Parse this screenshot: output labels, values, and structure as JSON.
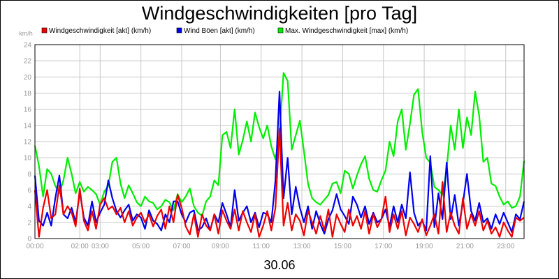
{
  "chart_data": {
    "type": "line",
    "title": "Windgeschwindigkeiten [pro Tag]",
    "ylabel": "km/h",
    "xlabel": "30.06",
    "ylim": [
      0,
      24
    ],
    "yticks": [
      0,
      2,
      4,
      6,
      8,
      10,
      12,
      14,
      16,
      18,
      20,
      22,
      24
    ],
    "xlim": [
      0,
      24
    ],
    "xticks": [
      {
        "x": 0,
        "label": "00:00"
      },
      {
        "x": 2.2,
        "label": "02:00"
      },
      {
        "x": 3.2,
        "label": "03:00"
      },
      {
        "x": 5.2,
        "label": "05:00"
      },
      {
        "x": 7.2,
        "label": "07:00"
      },
      {
        "x": 9.1,
        "label": "09:00"
      },
      {
        "x": 11.1,
        "label": "11:00"
      },
      {
        "x": 13.1,
        "label": "13:00"
      },
      {
        "x": 15.1,
        "label": "15:00"
      },
      {
        "x": 17.1,
        "label": "17:00"
      },
      {
        "x": 19.1,
        "label": "19:00"
      },
      {
        "x": 21.1,
        "label": "21:00"
      },
      {
        "x": 23.1,
        "label": "23:00"
      }
    ],
    "grid": true,
    "legend_position": "top",
    "series": [
      {
        "name": "Max. Windgeschwindigkeit [max] (km/h)",
        "color": "#00ee00",
        "x": [
          0,
          0.2,
          0.4,
          0.6,
          0.8,
          1.0,
          1.2,
          1.4,
          1.6,
          1.8,
          2.0,
          2.2,
          2.4,
          2.6,
          2.8,
          3.0,
          3.2,
          3.4,
          3.6,
          3.8,
          4.0,
          4.2,
          4.4,
          4.6,
          4.8,
          5.0,
          5.2,
          5.4,
          5.6,
          5.8,
          6.0,
          6.2,
          6.4,
          6.6,
          6.8,
          7.0,
          7.2,
          7.4,
          7.6,
          7.8,
          8.0,
          8.2,
          8.4,
          8.6,
          8.8,
          9.0,
          9.2,
          9.4,
          9.6,
          9.8,
          10.0,
          10.2,
          10.4,
          10.6,
          10.8,
          11.0,
          11.2,
          11.4,
          11.6,
          11.8,
          12.0,
          12.2,
          12.4,
          12.6,
          12.8,
          13.0,
          13.2,
          13.4,
          13.6,
          13.8,
          14.0,
          14.2,
          14.4,
          14.6,
          14.8,
          15.0,
          15.2,
          15.4,
          15.6,
          15.8,
          16.0,
          16.2,
          16.4,
          16.6,
          16.8,
          17.0,
          17.2,
          17.4,
          17.6,
          17.8,
          18.0,
          18.2,
          18.4,
          18.6,
          18.8,
          19.0,
          19.2,
          19.4,
          19.6,
          19.8,
          20.0,
          20.2,
          20.4,
          20.6,
          20.8,
          21.0,
          21.2,
          21.4,
          21.6,
          21.8,
          22.0,
          22.2,
          22.4,
          22.6,
          22.8,
          23.0,
          23.2,
          23.4,
          23.6,
          23.8,
          24.0
        ],
        "values": [
          11.5,
          9.0,
          5.2,
          8.6,
          8.0,
          6.5,
          5.6,
          7.2,
          10.0,
          8.0,
          5.6,
          7.0,
          5.8,
          6.4,
          6.0,
          5.5,
          4.2,
          5.8,
          6.5,
          9.5,
          10.0,
          6.8,
          5.0,
          6.6,
          5.6,
          4.5,
          4.0,
          5.2,
          4.6,
          4.4,
          3.6,
          4.0,
          4.8,
          4.5,
          3.5,
          5.5,
          4.5,
          5.2,
          6.2,
          4.0,
          3.2,
          2.8,
          4.6,
          5.2,
          7.2,
          6.6,
          12.8,
          13.2,
          11.2,
          16.0,
          10.4,
          12.2,
          14.5,
          12.0,
          15.6,
          13.8,
          12.4,
          14.0,
          11.4,
          9.8,
          13.0,
          20.5,
          19.5,
          11.0,
          12.8,
          14.6,
          10.8,
          6.8,
          5.0,
          4.5,
          4.2,
          4.8,
          5.4,
          6.8,
          7.0,
          5.6,
          8.4,
          8.0,
          6.2,
          7.8,
          9.2,
          10.2,
          7.4,
          6.0,
          5.8,
          7.2,
          8.4,
          12.0,
          10.2,
          14.5,
          16.0,
          11.0,
          14.2,
          17.8,
          18.5,
          13.2,
          10.0,
          9.4,
          6.4,
          6.0,
          5.4,
          8.6,
          14.0,
          11.0,
          16.0,
          11.2,
          15.0,
          12.8,
          18.2,
          15.2,
          9.5,
          10.0,
          6.8,
          6.5,
          5.2,
          4.2,
          4.6,
          3.8,
          4.0,
          5.2,
          9.6
        ]
      },
      {
        "name": "Wind Böen [akt] (km/h)",
        "color": "#0000ee",
        "x": [
          0,
          0.2,
          0.4,
          0.6,
          0.8,
          1.0,
          1.2,
          1.4,
          1.6,
          1.8,
          2.0,
          2.2,
          2.4,
          2.6,
          2.8,
          3.0,
          3.2,
          3.4,
          3.6,
          3.8,
          4.0,
          4.2,
          4.4,
          4.6,
          4.8,
          5.0,
          5.2,
          5.4,
          5.6,
          5.8,
          6.0,
          6.2,
          6.4,
          6.6,
          6.8,
          7.0,
          7.2,
          7.4,
          7.6,
          7.8,
          8.0,
          8.2,
          8.4,
          8.6,
          8.8,
          9.0,
          9.2,
          9.4,
          9.6,
          9.8,
          10.0,
          10.2,
          10.4,
          10.6,
          10.8,
          11.0,
          11.2,
          11.4,
          11.6,
          11.8,
          12.0,
          12.2,
          12.4,
          12.6,
          12.8,
          13.0,
          13.2,
          13.4,
          13.6,
          13.8,
          14.0,
          14.2,
          14.4,
          14.6,
          14.8,
          15.0,
          15.2,
          15.4,
          15.6,
          15.8,
          16.0,
          16.2,
          16.4,
          16.6,
          16.8,
          17.0,
          17.2,
          17.4,
          17.6,
          17.8,
          18.0,
          18.2,
          18.4,
          18.6,
          18.8,
          19.0,
          19.2,
          19.4,
          19.6,
          19.8,
          20.0,
          20.2,
          20.4,
          20.6,
          20.8,
          21.0,
          21.2,
          21.4,
          21.6,
          21.8,
          22.0,
          22.2,
          22.4,
          22.6,
          22.8,
          23.0,
          23.2,
          23.4,
          23.6,
          23.8,
          24.0
        ],
        "values": [
          7.8,
          2.2,
          1.6,
          3.2,
          1.6,
          5.0,
          7.8,
          3.0,
          2.5,
          3.8,
          2.0,
          5.8,
          2.6,
          1.6,
          4.6,
          2.0,
          3.2,
          4.2,
          7.2,
          5.0,
          3.4,
          2.6,
          3.5,
          4.2,
          2.2,
          3.0,
          2.6,
          1.2,
          3.5,
          2.2,
          1.8,
          1.0,
          3.0,
          2.0,
          4.6,
          4.6,
          3.0,
          2.0,
          3.2,
          3.5,
          1.0,
          1.4,
          2.5,
          1.0,
          3.0,
          2.0,
          4.4,
          3.0,
          1.4,
          6.0,
          2.2,
          3.2,
          4.0,
          2.0,
          3.2,
          1.4,
          3.2,
          3.0,
          2.0,
          7.2,
          18.2,
          5.0,
          10.0,
          3.0,
          6.4,
          3.8,
          2.0,
          4.0,
          1.2,
          3.4,
          1.8,
          0.6,
          2.4,
          3.5,
          5.5,
          3.6,
          2.8,
          1.8,
          5.2,
          4.2,
          2.6,
          4.0,
          1.8,
          3.2,
          2.0,
          2.4,
          3.6,
          1.5,
          4.0,
          2.0,
          4.2,
          2.5,
          8.2,
          3.2,
          1.6,
          2.2,
          1.0,
          10.2,
          1.4,
          5.6,
          2.4,
          9.4,
          2.4,
          5.4,
          1.6,
          4.4,
          8.0,
          3.4,
          2.2,
          4.4,
          2.0,
          2.5,
          1.2,
          3.0,
          1.8,
          3.2,
          2.0,
          0.8,
          3.0,
          2.4,
          4.6
        ]
      },
      {
        "name": "Windgeschwindigkeit [akt] (km/h)",
        "color": "#ee0000",
        "x": [
          0,
          0.2,
          0.4,
          0.6,
          0.8,
          1.0,
          1.2,
          1.4,
          1.6,
          1.8,
          2.0,
          2.2,
          2.4,
          2.6,
          2.8,
          3.0,
          3.2,
          3.4,
          3.6,
          3.8,
          4.0,
          4.2,
          4.4,
          4.6,
          4.8,
          5.0,
          5.2,
          5.4,
          5.6,
          5.8,
          6.0,
          6.2,
          6.4,
          6.6,
          6.8,
          7.0,
          7.2,
          7.4,
          7.6,
          7.8,
          8.0,
          8.2,
          8.4,
          8.6,
          8.8,
          9.0,
          9.2,
          9.4,
          9.6,
          9.8,
          10.0,
          10.2,
          10.4,
          10.6,
          10.8,
          11.0,
          11.2,
          11.4,
          11.6,
          11.8,
          12.0,
          12.2,
          12.4,
          12.6,
          12.8,
          13.0,
          13.2,
          13.4,
          13.6,
          13.8,
          14.0,
          14.2,
          14.4,
          14.6,
          14.8,
          15.0,
          15.2,
          15.4,
          15.6,
          15.8,
          16.0,
          16.2,
          16.4,
          16.6,
          16.8,
          17.0,
          17.2,
          17.4,
          17.6,
          17.8,
          18.0,
          18.2,
          18.4,
          18.6,
          18.8,
          19.0,
          19.2,
          19.4,
          19.6,
          19.8,
          20.0,
          20.2,
          20.4,
          20.6,
          20.8,
          21.0,
          21.2,
          21.4,
          21.6,
          21.8,
          22.0,
          22.2,
          22.4,
          22.6,
          22.8,
          23.0,
          23.2,
          23.4,
          23.6,
          23.8,
          24.0
        ],
        "values": [
          6.0,
          0.2,
          3.8,
          6.0,
          2.5,
          3.0,
          6.6,
          3.0,
          4.0,
          3.2,
          1.5,
          6.2,
          2.2,
          1.0,
          3.4,
          1.2,
          4.2,
          5.0,
          3.6,
          4.0,
          3.0,
          3.8,
          2.0,
          3.4,
          1.6,
          2.6,
          3.2,
          2.0,
          3.0,
          1.5,
          2.8,
          3.6,
          1.2,
          4.0,
          2.0,
          5.4,
          3.8,
          1.5,
          0.5,
          3.0,
          0.2,
          3.0,
          1.6,
          1.0,
          3.0,
          0.6,
          3.5,
          2.2,
          1.2,
          3.6,
          1.0,
          3.4,
          2.0,
          0.8,
          3.0,
          0.2,
          1.6,
          3.4,
          1.0,
          3.8,
          13.6,
          1.6,
          4.4,
          1.0,
          3.0,
          2.2,
          0.4,
          3.4,
          2.0,
          0.6,
          2.8,
          1.0,
          3.6,
          0.2,
          3.0,
          1.8,
          0.8,
          3.6,
          1.6,
          2.8,
          1.2,
          3.4,
          0.6,
          3.0,
          1.4,
          2.4,
          5.2,
          0.8,
          3.0,
          1.2,
          3.4,
          0.4,
          2.6,
          1.8,
          0.8,
          2.4,
          0.4,
          1.6,
          3.0,
          0.6,
          7.0,
          0.8,
          3.2,
          1.6,
          0.6,
          5.0,
          1.2,
          3.0,
          1.6,
          3.4,
          1.0,
          2.2,
          0.6,
          1.4,
          0.2,
          2.0,
          1.0,
          0.2,
          2.6,
          2.2,
          2.6
        ]
      }
    ]
  }
}
